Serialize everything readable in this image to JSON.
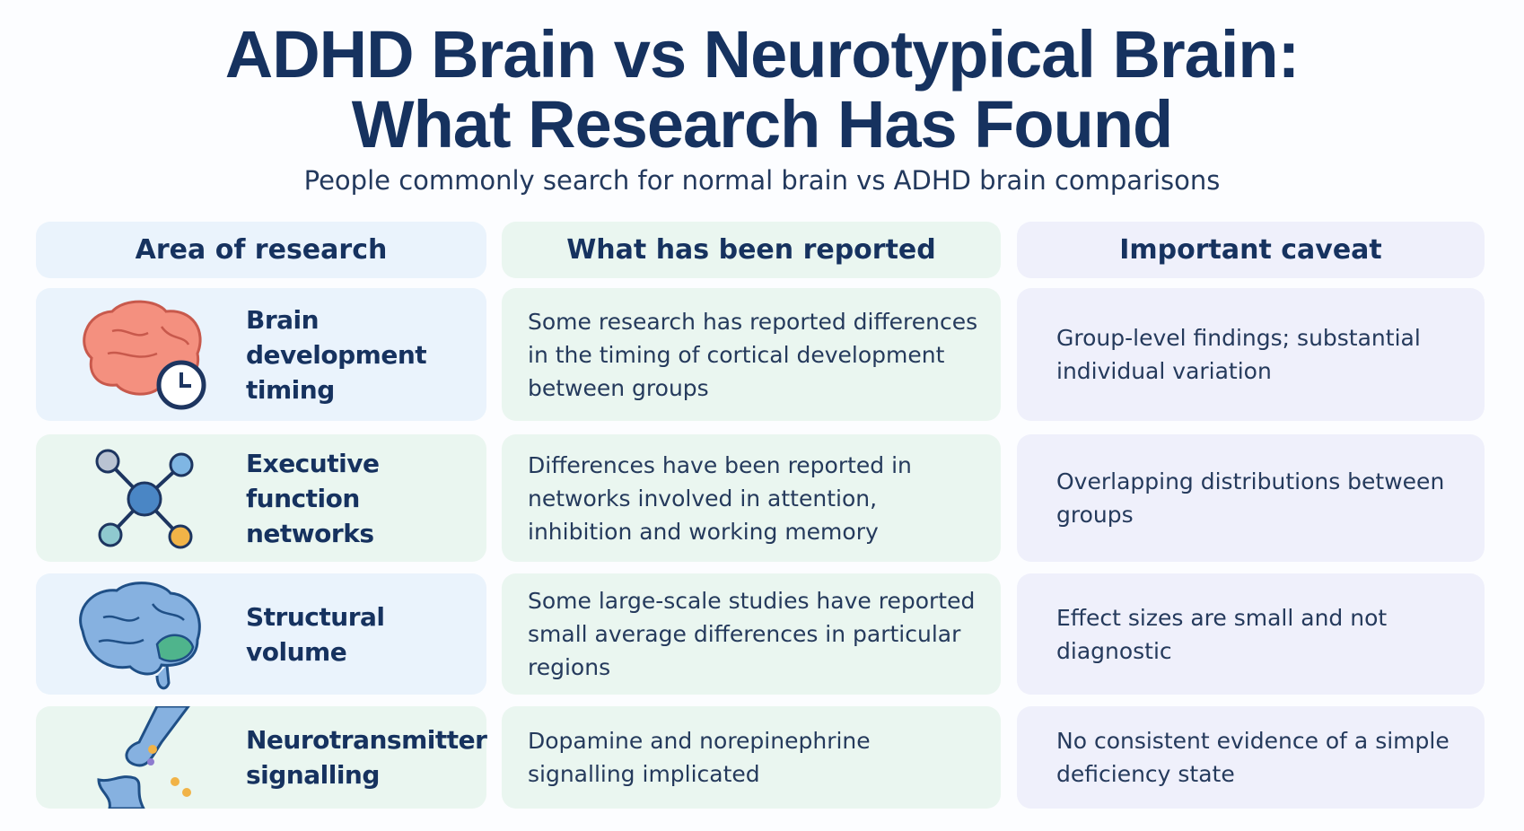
{
  "header": {
    "title": [
      "ADHD Brain vs Neurotypical Brain:",
      "What Research Has Found"
    ],
    "subtitle": "People commonly search for normal brain vs ADHD brain comparisons"
  },
  "table": {
    "columns": [
      "Area of research",
      "What has been reported",
      "Important caveat"
    ],
    "rows": [
      [
        "Brain development timing",
        "Some research has reported differences in the timing of cortical development between groups",
        "Group-level findings; substantial individual variation"
      ],
      [
        "Executive function networks",
        "Differences have been reported in networks involved in attention, inhibition and working memory",
        "Overlapping distributions between groups"
      ],
      [
        "Structural volume",
        "Some large-scale studies have reported small average differences in particular regions",
        "Effect sizes are small and not diagnostic"
      ],
      [
        "Neurotransmitter signalling",
        "Dopamine and norepinephrine signalling implicated",
        "No consistent evidence of a simple deficiency state"
      ]
    ]
  }
}
